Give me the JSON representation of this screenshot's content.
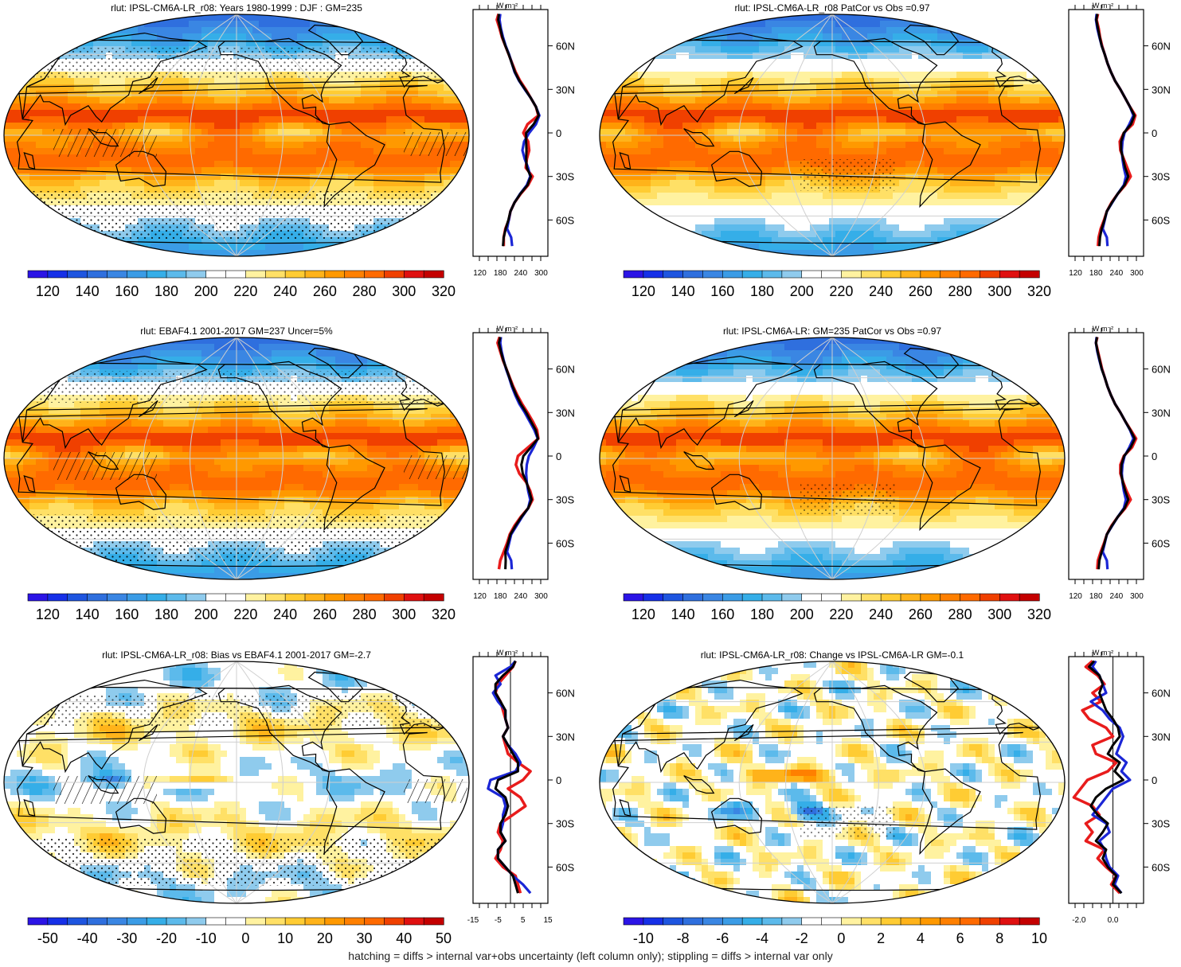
{
  "figure": {
    "footer_note": "hatching = diffs > internal var+obs uncertainty (left column only); stippling = diffs > internal var only",
    "profile_unit": "W m⁻²",
    "lat_labels": [
      "60N",
      "30N",
      "0",
      "30S",
      "60S"
    ]
  },
  "colors": {
    "abs_scale": [
      "#2b14e6",
      "#1630e8",
      "#1e55e0",
      "#2f6fde",
      "#3a86e3",
      "#3b9ce6",
      "#35aee8",
      "#5cbaeb",
      "#8fcbed",
      "#ffffff",
      "#ffffff",
      "#fff2a0",
      "#ffe066",
      "#ffcc33",
      "#ffb31a",
      "#ff9900",
      "#ff8000",
      "#ff6a00",
      "#f04000",
      "#e01010",
      "#c40000"
    ],
    "diff_scale": [
      "#2b14e6",
      "#1630e8",
      "#1e55e0",
      "#2f6fde",
      "#3a86e3",
      "#3b9ce6",
      "#35aee8",
      "#5cbaeb",
      "#8fcbed",
      "#ffffff",
      "#ffffff",
      "#fff2a0",
      "#ffe066",
      "#ffcc33",
      "#ffb31a",
      "#ff9900",
      "#ff8000",
      "#ff6a00",
      "#f04000",
      "#e01010",
      "#c40000"
    ],
    "model_line": "#e81c1c",
    "obs_line": "#1b26d6",
    "ref_line": "#000000"
  },
  "chart_data": [
    {
      "type": "heatmap",
      "title": "rlut: IPSL-CM6A-LR_r08: Years 1980-1999 : DJF : GM=235",
      "colorbar_ticks": [
        "120",
        "140",
        "160",
        "180",
        "200",
        "220",
        "240",
        "260",
        "280",
        "300",
        "320"
      ],
      "profile_ticks": [
        "120",
        "180",
        "240",
        "300"
      ],
      "profile_xlim": [
        100,
        320
      ],
      "profile_lat": [
        82,
        78,
        72,
        66,
        60,
        54,
        48,
        42,
        36,
        30,
        24,
        18,
        12,
        6,
        0,
        -6,
        -12,
        -18,
        -24,
        -30,
        -36,
        -42,
        -48,
        -54,
        -60,
        -66,
        -72,
        -78
      ],
      "profile_model": [
        175,
        170,
        178,
        185,
        195,
        205,
        215,
        225,
        238,
        255,
        270,
        285,
        292,
        260,
        248,
        262,
        265,
        258,
        255,
        275,
        262,
        240,
        222,
        210,
        205,
        195,
        190,
        190
      ],
      "profile_obs": [
        180,
        178,
        182,
        188,
        196,
        206,
        214,
        222,
        235,
        252,
        270,
        285,
        295,
        285,
        265,
        250,
        245,
        252,
        262,
        268,
        258,
        238,
        222,
        210,
        205,
        200,
        212,
        215
      ],
      "profile_ref": [
        176,
        174,
        180,
        186,
        195,
        205,
        214,
        223,
        236,
        253,
        270,
        285,
        293,
        278,
        256,
        256,
        257,
        256,
        258,
        270,
        260,
        239,
        222,
        210,
        204,
        196,
        190,
        188
      ]
    },
    {
      "type": "heatmap",
      "title": "rlut: IPSL-CM6A-LR_r08 PatCor vs Obs =0.97",
      "colorbar_ticks": [
        "120",
        "140",
        "160",
        "180",
        "200",
        "220",
        "240",
        "260",
        "280",
        "300",
        "320"
      ],
      "profile_ticks": [
        "120",
        "180",
        "240",
        "300"
      ],
      "profile_xlim": [
        100,
        320
      ],
      "profile_lat": [
        82,
        78,
        72,
        66,
        60,
        54,
        48,
        42,
        36,
        30,
        24,
        18,
        12,
        6,
        0,
        -6,
        -12,
        -18,
        -24,
        -30,
        -36,
        -42,
        -48,
        -54,
        -60,
        -66,
        -72,
        -78
      ],
      "profile_model": [
        186,
        182,
        188,
        192,
        198,
        206,
        214,
        224,
        236,
        252,
        266,
        280,
        296,
        288,
        262,
        250,
        252,
        262,
        272,
        282,
        266,
        244,
        226,
        212,
        204,
        194,
        188,
        186
      ],
      "profile_obs": [
        182,
        180,
        184,
        190,
        197,
        206,
        214,
        224,
        236,
        252,
        266,
        280,
        290,
        278,
        264,
        258,
        256,
        258,
        262,
        268,
        262,
        244,
        228,
        212,
        206,
        200,
        212,
        214
      ],
      "profile_ref": [
        184,
        181,
        186,
        191,
        197,
        206,
        214,
        224,
        236,
        252,
        266,
        280,
        293,
        283,
        262,
        254,
        254,
        260,
        266,
        275,
        264,
        244,
        227,
        212,
        205,
        197,
        192,
        190
      ]
    },
    {
      "type": "heatmap",
      "title": "rlut: EBAF4.1 2001-2017 GM=237 Uncer=5%",
      "colorbar_ticks": [
        "120",
        "140",
        "160",
        "180",
        "200",
        "220",
        "240",
        "260",
        "280",
        "300",
        "320"
      ],
      "profile_ticks": [
        "120",
        "180",
        "240",
        "300"
      ],
      "profile_xlim": [
        100,
        320
      ],
      "profile_lat": [
        82,
        78,
        72,
        66,
        60,
        54,
        48,
        42,
        36,
        30,
        24,
        18,
        12,
        6,
        0,
        -6,
        -12,
        -18,
        -24,
        -30,
        -36,
        -42,
        -48,
        -54,
        -60,
        -66,
        -72,
        -78
      ],
      "profile_model": [
        178,
        172,
        180,
        188,
        198,
        208,
        218,
        230,
        244,
        260,
        275,
        288,
        292,
        262,
        232,
        226,
        236,
        256,
        268,
        275,
        262,
        240,
        222,
        208,
        200,
        190,
        180,
        176
      ],
      "profile_obs": [
        182,
        180,
        184,
        190,
        197,
        206,
        214,
        224,
        236,
        252,
        266,
        280,
        290,
        278,
        264,
        258,
        256,
        258,
        262,
        268,
        262,
        244,
        228,
        212,
        206,
        200,
        212,
        214
      ],
      "profile_ref": [
        180,
        176,
        182,
        189,
        198,
        207,
        216,
        227,
        240,
        256,
        270,
        284,
        291,
        270,
        248,
        242,
        246,
        257,
        265,
        272,
        262,
        242,
        225,
        210,
        203,
        195,
        196,
        195
      ]
    },
    {
      "type": "heatmap",
      "title": "rlut: IPSL-CM6A-LR: GM=235 PatCor vs Obs =0.97",
      "colorbar_ticks": [
        "120",
        "140",
        "160",
        "180",
        "200",
        "220",
        "240",
        "260",
        "280",
        "300",
        "320"
      ],
      "profile_ticks": [
        "120",
        "180",
        "240",
        "300"
      ],
      "profile_xlim": [
        100,
        320
      ],
      "profile_lat": [
        82,
        78,
        72,
        66,
        60,
        54,
        48,
        42,
        36,
        30,
        24,
        18,
        12,
        6,
        0,
        -6,
        -12,
        -18,
        -24,
        -30,
        -36,
        -42,
        -48,
        -54,
        -60,
        -66,
        -72,
        -78
      ],
      "profile_model": [
        184,
        180,
        186,
        192,
        198,
        206,
        214,
        224,
        236,
        252,
        266,
        282,
        298,
        286,
        262,
        252,
        252,
        260,
        270,
        282,
        266,
        244,
        226,
        212,
        204,
        194,
        186,
        184
      ],
      "profile_obs": [
        182,
        180,
        184,
        190,
        197,
        206,
        214,
        224,
        236,
        252,
        266,
        280,
        290,
        278,
        264,
        258,
        256,
        258,
        262,
        268,
        262,
        244,
        228,
        212,
        206,
        200,
        212,
        214
      ],
      "profile_ref": [
        183,
        180,
        185,
        191,
        197,
        206,
        214,
        224,
        236,
        252,
        266,
        281,
        294,
        282,
        263,
        255,
        254,
        259,
        266,
        275,
        264,
        244,
        227,
        212,
        205,
        197,
        190,
        188
      ]
    },
    {
      "type": "heatmap",
      "title": "rlut: IPSL-CM6A-LR_r08: Bias vs EBAF4.1 2001-2017 GM=-2.7",
      "colorbar_ticks": [
        "-50",
        "-40",
        "-30",
        "-20",
        "-10",
        "0",
        "10",
        "20",
        "30",
        "40",
        "50"
      ],
      "profile_ticks": [
        "-15",
        "-5",
        "5",
        "15"
      ],
      "profile_xlim": [
        -15,
        15
      ],
      "profile_lat": [
        82,
        78,
        72,
        66,
        60,
        54,
        48,
        42,
        36,
        30,
        24,
        18,
        12,
        6,
        0,
        -6,
        -12,
        -18,
        -24,
        -30,
        -36,
        -42,
        -48,
        -54,
        -60,
        -66,
        -72,
        -78
      ],
      "profile_model": [
        2,
        1,
        -2,
        -5,
        -6,
        -4,
        -3,
        -2,
        -1,
        -3,
        -2,
        -1,
        3,
        8,
        5,
        -1,
        4,
        6,
        1,
        -4,
        -5,
        -3,
        -4,
        -6,
        -3,
        2,
        3,
        4
      ],
      "profile_obs": [
        2,
        0,
        -6,
        -4,
        -7,
        -5,
        -2,
        -2,
        -1,
        -3,
        -1,
        2,
        4,
        2,
        -8,
        -9,
        -3,
        -2,
        -3,
        -3,
        -4,
        -2,
        -5,
        -5,
        -2,
        1,
        5,
        8
      ],
      "profile_ref": [
        2,
        1,
        -3,
        -6,
        -6,
        -4,
        -2,
        -2,
        -1,
        -3,
        -1,
        1,
        3,
        3,
        -5,
        -6,
        -2,
        -1,
        -2,
        -4,
        -4,
        -2,
        -5,
        -5,
        -2,
        1,
        2,
        3
      ]
    },
    {
      "type": "heatmap",
      "title": "rlut: IPSL-CM6A-LR_r08: Change vs IPSL-CM6A-LR GM=-0.1",
      "colorbar_ticks": [
        "-10",
        "-8",
        "-6",
        "-4",
        "-2",
        "0",
        "2",
        "4",
        "6",
        "8",
        "10"
      ],
      "profile_ticks": [
        "-2.0",
        "0.0"
      ],
      "profile_xlim": [
        -2.6,
        1.8
      ],
      "profile_lat": [
        82,
        78,
        72,
        66,
        60,
        54,
        48,
        42,
        36,
        30,
        24,
        18,
        12,
        6,
        0,
        -6,
        -12,
        -18,
        -24,
        -30,
        -36,
        -42,
        -48,
        -54,
        -60,
        -66,
        -72,
        -78
      ],
      "profile_model": [
        -1.2,
        -1.6,
        -0.9,
        -0.5,
        -1.2,
        -0.7,
        -1.8,
        -1.4,
        -0.4,
        0.0,
        -1.2,
        -1.0,
        0.2,
        -0.3,
        -1.5,
        -1.9,
        -2.3,
        -1.2,
        -0.8,
        -1.6,
        -1.2,
        -1.6,
        -0.5,
        -0.9,
        -0.4,
        0.2,
        -0.1,
        0.4
      ],
      "profile_obs": [
        -1.0,
        -1.2,
        -0.8,
        -0.6,
        -0.4,
        -1.3,
        -0.6,
        -0.2,
        0.4,
        0.6,
        0.4,
        0.2,
        0.8,
        0.5,
        1.0,
        0.0,
        -0.4,
        -0.8,
        -1.2,
        -0.4,
        -0.2,
        -0.8,
        -0.5,
        -0.4,
        -0.2,
        0.3,
        0.1,
        0.5
      ],
      "profile_ref": [
        -1.1,
        -1.4,
        -0.8,
        -0.6,
        -0.8,
        -0.6,
        -0.4,
        0.0,
        0.3,
        0.4,
        0.0,
        -0.3,
        0.4,
        0.1,
        0.6,
        -0.4,
        -1.0,
        -1.3,
        -0.9,
        -0.3,
        -0.6,
        -1.0,
        -0.4,
        -0.6,
        -0.3,
        0.2,
        0.0,
        0.5
      ]
    }
  ]
}
